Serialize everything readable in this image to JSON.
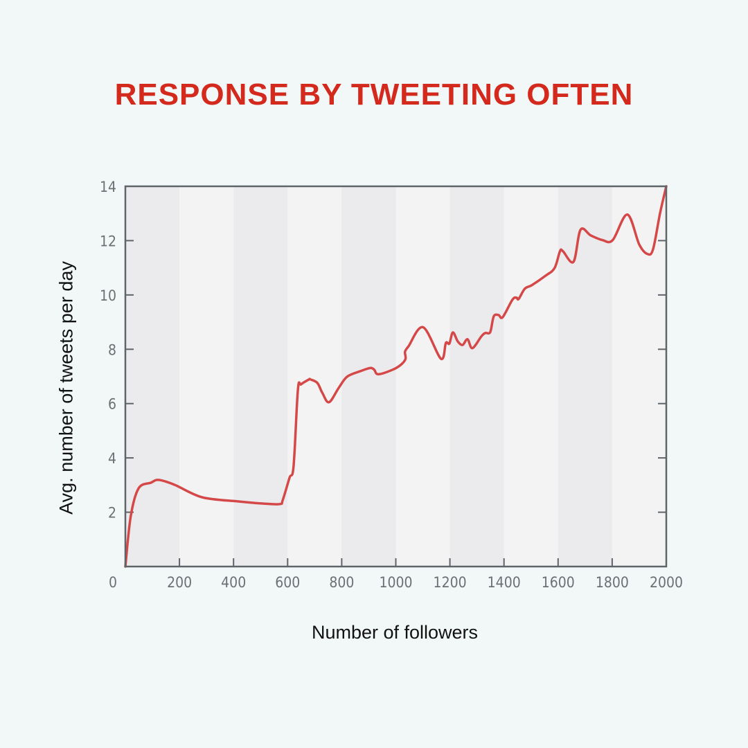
{
  "title": "RESPONSE BY TWEETING OFTEN",
  "axes": {
    "xlabel": "Number of followers",
    "ylabel": "Avg. number of tweets per day"
  },
  "colors": {
    "title": "#d32a1d",
    "line": "#d54848",
    "axis": "#5f6468",
    "band_dark": "#ebebee",
    "band_light": "#f3f3f4",
    "background": "#f1f8f7"
  },
  "chart_data": {
    "type": "line",
    "title": "RESPONSE BY TWEETING OFTEN",
    "xlabel": "Number of followers",
    "ylabel": "Avg. number of tweets per day",
    "xlim": [
      0,
      2000
    ],
    "ylim": [
      0,
      14
    ],
    "x_ticks": [
      0,
      200,
      400,
      600,
      800,
      1000,
      1200,
      1400,
      1600,
      1800,
      2000
    ],
    "y_ticks": [
      2,
      4,
      6,
      8,
      10,
      12,
      14
    ],
    "y_tick_labels_left": [
      "2",
      "4",
      "6",
      "8",
      "10",
      "12",
      "14"
    ],
    "x_tick_labels": [
      "0",
      "200",
      "400",
      "600",
      "800",
      "1000",
      "1200",
      "1400",
      "1600",
      "1800",
      "2000"
    ],
    "grid": false,
    "background_bands": "alternating vertical bands every 200 followers",
    "legend": null,
    "series": [
      {
        "name": "Avg. tweets per day",
        "x": [
          0,
          20,
          49,
          95,
          123,
          182,
          284,
          415,
          507,
          571,
          582,
          607,
          622,
          638,
          650,
          679,
          684,
          710,
          728,
          753,
          789,
          820,
          868,
          905,
          920,
          935,
          989,
          1020,
          1036,
          1034,
          1047,
          1101,
          1167,
          1185,
          1198,
          1211,
          1229,
          1247,
          1265,
          1283,
          1316,
          1331,
          1349,
          1362,
          1380,
          1395,
          1431,
          1446,
          1454,
          1477,
          1503,
          1554,
          1587,
          1607,
          1618,
          1657,
          1683,
          1721,
          1764,
          1802,
          1856,
          1900,
          1930,
          1951,
          1977,
          2000
        ],
        "y": [
          0.0,
          1.86,
          2.88,
          3.09,
          3.19,
          3.01,
          2.55,
          2.4,
          2.32,
          2.3,
          2.45,
          3.27,
          3.7,
          6.51,
          6.71,
          6.89,
          6.89,
          6.76,
          6.4,
          6.05,
          6.58,
          6.99,
          7.19,
          7.31,
          7.25,
          7.08,
          7.25,
          7.44,
          7.65,
          7.91,
          8.11,
          8.81,
          7.65,
          8.23,
          8.21,
          8.62,
          8.29,
          8.16,
          8.37,
          8.04,
          8.47,
          8.6,
          8.63,
          9.21,
          9.26,
          9.18,
          9.82,
          9.9,
          9.85,
          10.23,
          10.36,
          10.71,
          10.99,
          11.61,
          11.61,
          11.22,
          12.4,
          12.19,
          12.02,
          12.02,
          12.96,
          11.86,
          11.51,
          11.68,
          13.01,
          14.0
        ]
      }
    ]
  }
}
